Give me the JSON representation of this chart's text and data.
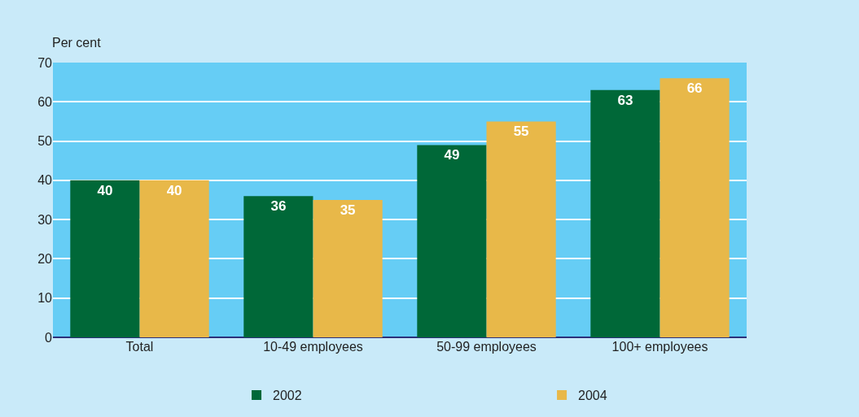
{
  "chart_data": {
    "type": "bar",
    "ylabel": "Per cent",
    "categories": [
      "Total",
      "10-49 employees",
      "50-99 employees",
      "100+ employees"
    ],
    "series": [
      {
        "name": "2002",
        "color": "#006838",
        "values": [
          40,
          36,
          49,
          63
        ]
      },
      {
        "name": "2004",
        "color": "#e8b849",
        "values": [
          40,
          35,
          55,
          66
        ]
      }
    ],
    "ylim": [
      0,
      70
    ],
    "yticks": [
      0,
      10,
      20,
      30,
      40,
      50,
      60,
      70
    ],
    "grid": "y",
    "legend": "bottom",
    "data_labels": true
  }
}
